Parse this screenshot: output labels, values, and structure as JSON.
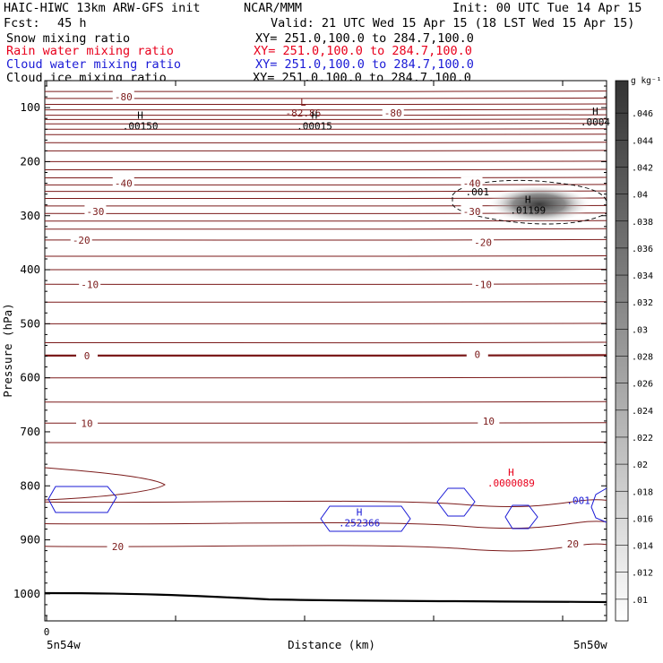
{
  "header": {
    "model": "HAIC-HIWC 13km ARW-GFS init",
    "center": "NCAR/MMM",
    "init": "Init: 00 UTC Tue 14 Apr 15",
    "fcst_label": "Fcst:",
    "fcst_value": "45 h",
    "valid": "Valid: 21 UTC Wed 15 Apr 15 (18 LST Wed 15 Apr 15)"
  },
  "fields": [
    {
      "name": "Snow mixing ratio",
      "xy": "XY= 251.0,100.0 to 284.7,100.0",
      "color": "#000000"
    },
    {
      "name": "Rain water mixing ratio",
      "xy": "XY= 251.0,100.0 to 284.7,100.0",
      "color": "#e8001c"
    },
    {
      "name": "Cloud water mixing ratio",
      "xy": "XY= 251.0,100.0 to 284.7,100.0",
      "color": "#1a1ad6"
    },
    {
      "name": "Cloud ice mixing ratio",
      "xy": "XY= 251.0,100.0 to 284.7,100.0",
      "color": "#000000"
    }
  ],
  "chart_data": {
    "type": "contour",
    "xlabel": "Distance (km)",
    "ylabel": "Pressure (hPa)",
    "x_ticks": [
      {
        "value": 0,
        "label": "0"
      }
    ],
    "x_end_labels": [
      "5n54w",
      "5n50w"
    ],
    "y_ticks": [
      100,
      200,
      300,
      400,
      500,
      600,
      700,
      800,
      900,
      1000
    ],
    "ylim": [
      1050,
      50
    ],
    "temperature_labels": [
      {
        "text": "-80",
        "x": 0.14,
        "p": 80
      },
      {
        "text": "-80",
        "x": 0.62,
        "p": 110
      },
      {
        "text": "-40",
        "x": 0.14,
        "p": 240
      },
      {
        "text": "-40",
        "x": 0.76,
        "p": 240
      },
      {
        "text": "-30",
        "x": 0.09,
        "p": 292
      },
      {
        "text": "-30",
        "x": 0.76,
        "p": 292
      },
      {
        "text": "-20",
        "x": 0.065,
        "p": 345
      },
      {
        "text": "-20",
        "x": 0.78,
        "p": 349
      },
      {
        "text": "-10",
        "x": 0.08,
        "p": 427
      },
      {
        "text": "-10",
        "x": 0.78,
        "p": 427
      },
      {
        "text": "0",
        "x": 0.075,
        "p": 559
      },
      {
        "text": "0",
        "x": 0.77,
        "p": 557
      },
      {
        "text": "10",
        "x": 0.075,
        "p": 684
      },
      {
        "text": "10",
        "x": 0.79,
        "p": 680
      },
      {
        "text": "20",
        "x": 0.13,
        "p": 912
      },
      {
        "text": "20",
        "x": 0.94,
        "p": 907
      }
    ],
    "extrema": [
      {
        "mark": "L",
        "value": "-82.86",
        "x": 0.46,
        "p": 103,
        "color": "#7b1a1a"
      },
      {
        "mark": "H",
        "value": ".00150",
        "x": 0.17,
        "p": 127,
        "color": "#000000"
      },
      {
        "mark": "H",
        "value": ".00015",
        "x": 0.48,
        "p": 127,
        "color": "#000000"
      },
      {
        "mark": "H",
        "value": ".0004",
        "x": 0.98,
        "p": 120,
        "color": "#000000"
      },
      {
        "mark": "H",
        "value": ".01199",
        "x": 0.86,
        "p": 283,
        "color": "#000000"
      },
      {
        "mark": "H",
        "value": ".0000089",
        "x": 0.83,
        "p": 788,
        "color": "#e8001c"
      },
      {
        "mark": "H",
        "value": ".252366",
        "x": 0.56,
        "p": 862,
        "color": "#1a1ad6"
      }
    ],
    "contour_labels": [
      {
        "text": ".001",
        "x": 0.77,
        "p": 256,
        "color": "#000000"
      },
      {
        "text": ".001",
        "x": 0.95,
        "p": 827,
        "color": "#1a1ad6"
      }
    ],
    "colorbar": {
      "unit": "g kg⁻¹",
      "levels": [
        ".01",
        ".012",
        ".014",
        ".016",
        ".018",
        ".02",
        ".022",
        ".024",
        ".026",
        ".028",
        ".03",
        ".032",
        ".034",
        ".036",
        ".038",
        ".04",
        ".042",
        ".044",
        ".046"
      ]
    }
  }
}
